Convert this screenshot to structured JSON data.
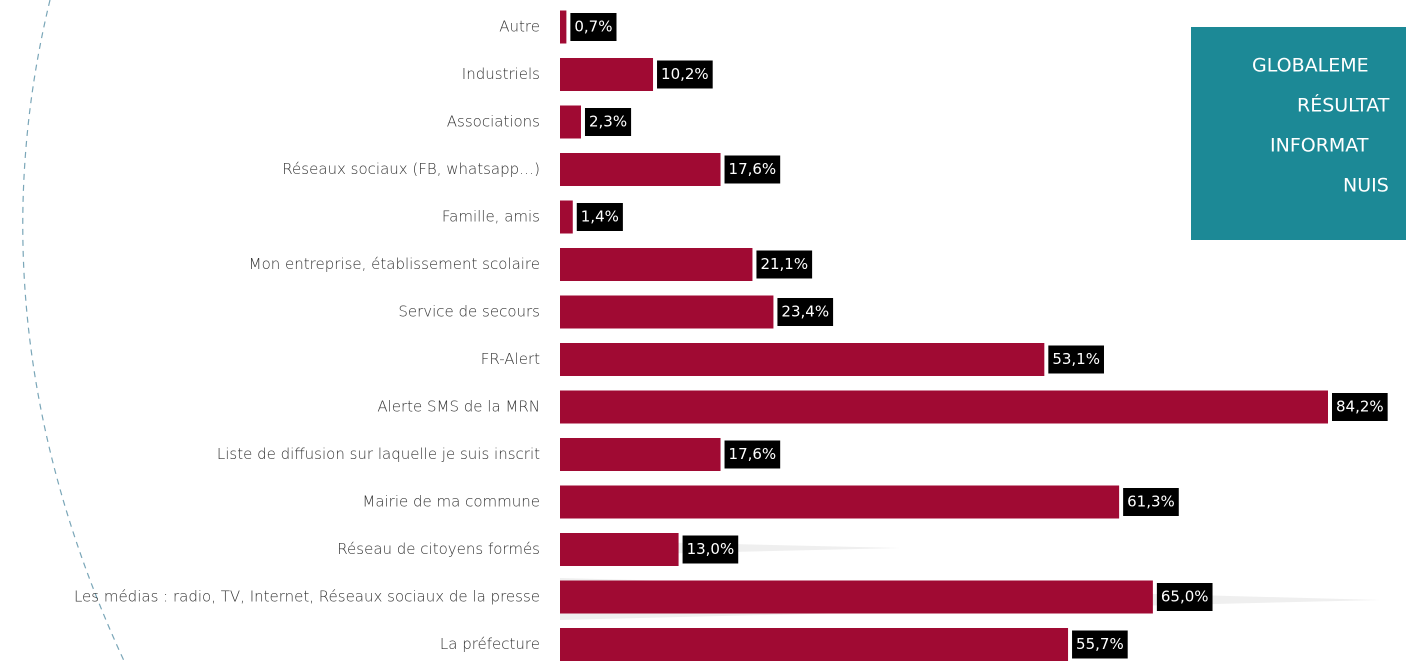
{
  "chart_data": {
    "type": "bar",
    "orientation": "horizontal",
    "color": "#a00a33",
    "categories": [
      "Autre",
      "Industriels",
      "Associations",
      "Réseaux sociaux (FB, whatsapp…)",
      "Famille, amis",
      "Mon entreprise, établissement scolaire",
      "Service de secours",
      "FR-Alert",
      "Alerte SMS de la MRN",
      "Liste de diffusion sur laquelle je suis inscrit",
      "Mairie de ma commune",
      "Réseau de citoyens formés",
      "Les médias : radio, TV, Internet, Réseaux sociaux de la presse",
      "La préfecture"
    ],
    "values": [
      0.7,
      10.2,
      2.3,
      17.6,
      1.4,
      21.1,
      23.4,
      53.1,
      84.2,
      17.6,
      61.3,
      13.0,
      65.0,
      55.7
    ],
    "value_labels": [
      "0,7%",
      "10,2%",
      "2,3%",
      "17,6%",
      "1,4%",
      "21,1%",
      "23,4%",
      "53,1%",
      "84,2%",
      "17,6%",
      "61,3%",
      "13,0%",
      "65,0%",
      "55,7%"
    ]
  },
  "callout": {
    "lines": [
      "GLOBALEME",
      "RÉSULTAT",
      "INFORMAT",
      "NUIS"
    ]
  }
}
